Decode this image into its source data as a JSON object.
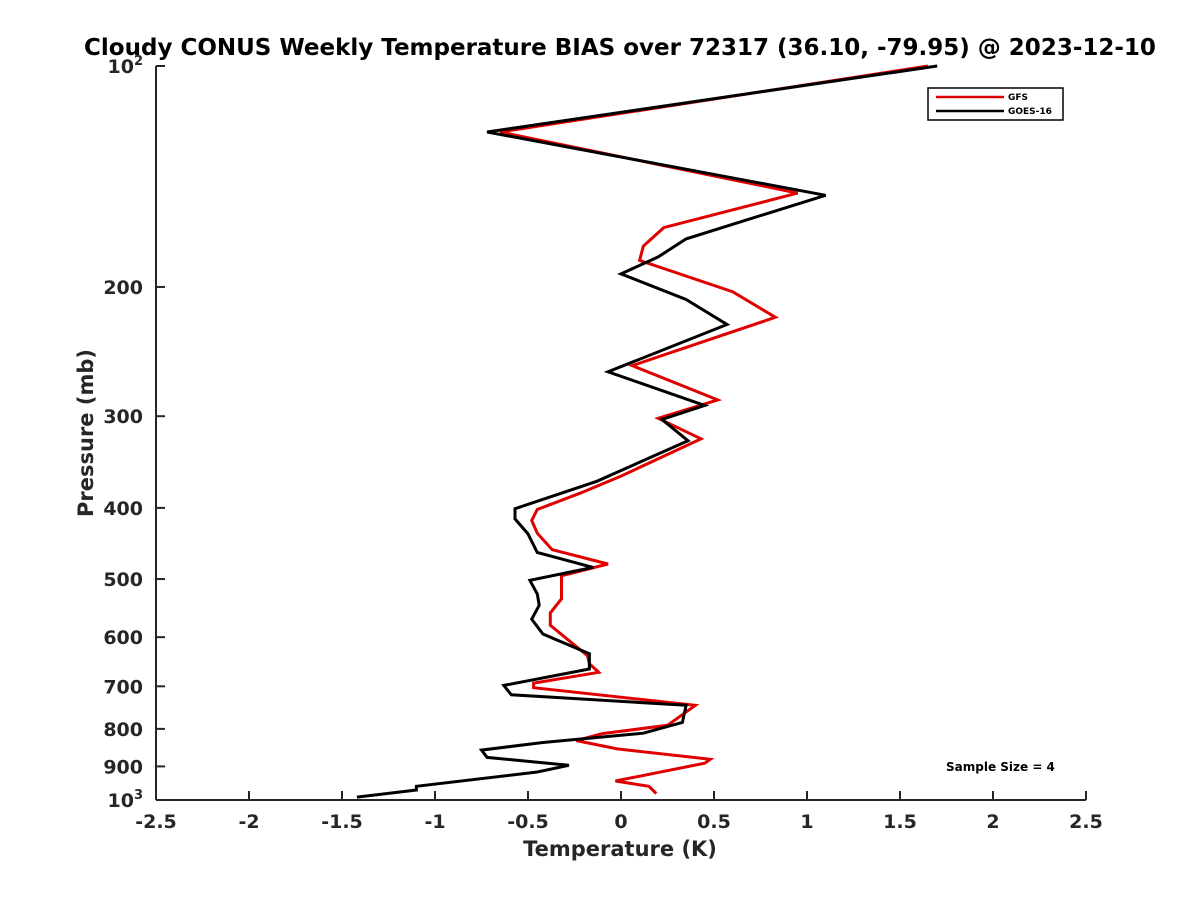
{
  "chart_data": {
    "type": "line",
    "title": "Cloudy CONUS Weekly Temperature BIAS over 72317 (36.10, -79.95) @ 2023-12-10",
    "xlabel": "Temperature (K)",
    "ylabel": "Pressure (mb)",
    "xlim": [
      -2.5,
      2.5
    ],
    "ylim": [
      100,
      1000
    ],
    "y_scale": "log",
    "y_reversed": true,
    "grid": false,
    "legend_position": "top-right",
    "x_ticks": [
      -2.5,
      -2,
      -1.5,
      -1,
      -0.5,
      0,
      0.5,
      1,
      1.5,
      2,
      2.5
    ],
    "x_tick_labels": [
      "-2.5",
      "-2",
      "-1.5",
      "-1",
      "-0.5",
      "0",
      "0.5",
      "1",
      "1.5",
      "2",
      "2.5"
    ],
    "y_ticks": [
      {
        "value": 100,
        "base": "10",
        "exp": "2"
      },
      {
        "value": 200,
        "base": "200",
        "exp": ""
      },
      {
        "value": 300,
        "base": "300",
        "exp": ""
      },
      {
        "value": 400,
        "base": "400",
        "exp": ""
      },
      {
        "value": 500,
        "base": "500",
        "exp": ""
      },
      {
        "value": 600,
        "base": "600",
        "exp": ""
      },
      {
        "value": 700,
        "base": "700",
        "exp": ""
      },
      {
        "value": 800,
        "base": "800",
        "exp": ""
      },
      {
        "value": 900,
        "base": "900",
        "exp": ""
      },
      {
        "value": 1000,
        "base": "10",
        "exp": "3"
      }
    ],
    "annotation": "Sample Size = 4",
    "series": [
      {
        "name": "GFS",
        "color": "#e00000",
        "points": [
          [
            1.65,
            100
          ],
          [
            -0.65,
            123
          ],
          [
            0.95,
            149
          ],
          [
            0.23,
            166
          ],
          [
            0.12,
            176
          ],
          [
            0.1,
            184
          ],
          [
            0.6,
            203
          ],
          [
            0.83,
            220
          ],
          [
            0.06,
            256
          ],
          [
            0.52,
            285
          ],
          [
            0.2,
            302
          ],
          [
            0.43,
            322
          ],
          [
            0.0,
            362
          ],
          [
            -0.22,
            382
          ],
          [
            -0.45,
            402
          ],
          [
            -0.48,
            416
          ],
          [
            -0.45,
            433
          ],
          [
            -0.37,
            456
          ],
          [
            -0.07,
            477
          ],
          [
            -0.32,
            495
          ],
          [
            -0.32,
            532
          ],
          [
            -0.38,
            556
          ],
          [
            -0.38,
            578
          ],
          [
            -0.18,
            636
          ],
          [
            -0.17,
            652
          ],
          [
            -0.12,
            670
          ],
          [
            -0.47,
            693
          ],
          [
            -0.47,
            703
          ],
          [
            0.4,
            743
          ],
          [
            0.25,
            791
          ],
          [
            -0.1,
            812
          ],
          [
            -0.24,
            830
          ],
          [
            -0.02,
            852
          ],
          [
            0.48,
            880
          ],
          [
            0.45,
            891
          ],
          [
            -0.03,
            942
          ],
          [
            0.15,
            958
          ],
          [
            0.19,
            980
          ]
        ]
      },
      {
        "name": "GOES-16",
        "color": "#000000",
        "points": [
          [
            1.7,
            100
          ],
          [
            -0.72,
            123
          ],
          [
            1.1,
            150
          ],
          [
            0.35,
            172
          ],
          [
            0.2,
            182
          ],
          [
            0.0,
            192
          ],
          [
            0.35,
            208
          ],
          [
            0.57,
            225
          ],
          [
            -0.07,
            261
          ],
          [
            0.45,
            290
          ],
          [
            0.22,
            303
          ],
          [
            0.36,
            324
          ],
          [
            -0.13,
            368
          ],
          [
            -0.57,
            401
          ],
          [
            -0.57,
            414
          ],
          [
            -0.5,
            434
          ],
          [
            -0.45,
            460
          ],
          [
            -0.15,
            482
          ],
          [
            -0.49,
            502
          ],
          [
            -0.45,
            524
          ],
          [
            -0.44,
            543
          ],
          [
            -0.48,
            567
          ],
          [
            -0.42,
            594
          ],
          [
            -0.17,
            632
          ],
          [
            -0.17,
            643
          ],
          [
            -0.17,
            663
          ],
          [
            -0.63,
            698
          ],
          [
            -0.59,
            719
          ],
          [
            0.35,
            743
          ],
          [
            0.33,
            784
          ],
          [
            0.12,
            811
          ],
          [
            -0.42,
            835
          ],
          [
            -0.75,
            855
          ],
          [
            -0.72,
            875
          ],
          [
            -0.28,
            897
          ],
          [
            -0.45,
            916
          ],
          [
            -1.1,
            958
          ],
          [
            -1.1,
            969
          ],
          [
            -1.42,
            991
          ]
        ]
      }
    ]
  }
}
